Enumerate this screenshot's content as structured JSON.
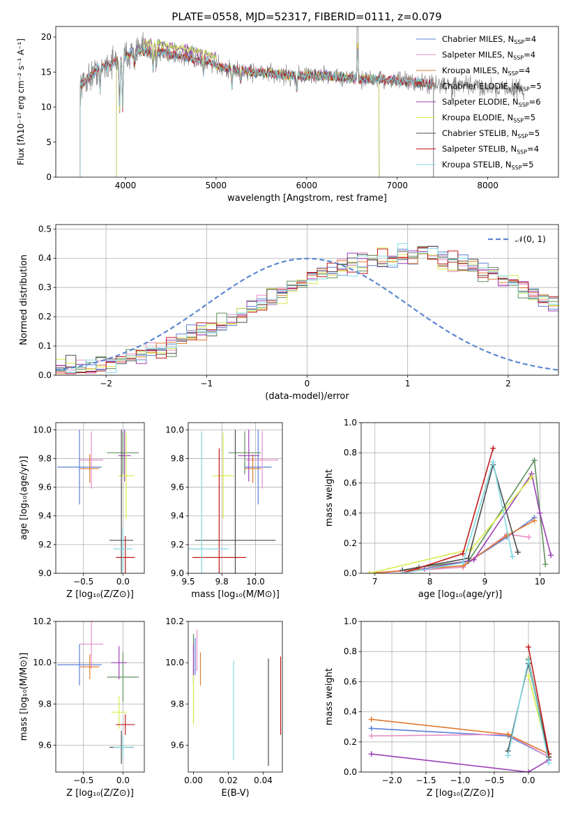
{
  "title": "PLATE=0558, MJD=52317, FIBERID=0111, z=0.079",
  "colors": {
    "Chabrier MILES": "#5b7fd6",
    "Salpeter MILES": "#e88fc7",
    "Kroupa MILES": "#e07a2f",
    "Chabrier ELODIE": "#5e8f5a",
    "Salpeter ELODIE": "#9b3fb5",
    "Kroupa ELODIE": "#d8ec4a",
    "Chabrier STELIB": "#4d4d4d",
    "Salpeter STELIB": "#c2181b",
    "Kroupa STELIB": "#80d8e0",
    "data": "#808080",
    "normal": "#5b87d0"
  },
  "chart_data": [
    {
      "id": "spectrum",
      "type": "line",
      "xlabel": "wavelength [Angstrom, rest frame]",
      "ylabel": "Flux [fλ10⁻¹⁷ erg cm⁻² s⁻¹ A⁻¹]",
      "xlim": [
        3230,
        8780
      ],
      "ylim": [
        0,
        21.5
      ],
      "xticks": [
        4000,
        5000,
        6000,
        7000,
        8000
      ],
      "yticks": [
        0,
        5,
        10,
        15,
        20
      ],
      "grid": false,
      "legend": "top-right",
      "continuum": {
        "x": [
          3500,
          3700,
          3900,
          4100,
          4300,
          4500,
          4700,
          4900,
          5100,
          5400,
          5800,
          6200,
          6600,
          7000,
          7400,
          7800,
          8200,
          8400
        ],
        "y": [
          13.0,
          15.5,
          16.5,
          18.0,
          18.0,
          17.5,
          17.0,
          16.5,
          15.5,
          15.0,
          14.5,
          14.5,
          14.0,
          13.8,
          13.2,
          13.0,
          12.7,
          12.5
        ]
      },
      "features": [
        {
          "x": 3720,
          "depth": 3
        },
        {
          "x": 3934,
          "depth": 7
        },
        {
          "x": 3968,
          "depth": 7
        },
        {
          "x": 4101,
          "depth": 2
        },
        {
          "x": 4304,
          "depth": 2.5
        },
        {
          "x": 4340,
          "depth": 2
        },
        {
          "x": 4861,
          "depth": 2
        },
        {
          "x": 5175,
          "depth": 2.5
        },
        {
          "x": 5270,
          "depth": 1.5
        },
        {
          "x": 5890,
          "depth": 2
        },
        {
          "x": 6563,
          "depth": -5
        },
        {
          "x": 7600,
          "depth": 1.5
        }
      ],
      "series": [
        {
          "name": "Chabrier MILES, N_SSP=4",
          "color_key": "Chabrier MILES"
        },
        {
          "name": "Salpeter MILES, N_SSP=4",
          "color_key": "Salpeter MILES"
        },
        {
          "name": "Kroupa MILES, N_SSP=4",
          "color_key": "Kroupa MILES"
        },
        {
          "name": "Chabrier ELODIE, N_SSP=5",
          "color_key": "Chabrier ELODIE"
        },
        {
          "name": "Salpeter ELODIE, N_SSP=6",
          "color_key": "Salpeter ELODIE"
        },
        {
          "name": "Kroupa ELODIE, N_SSP=5",
          "color_key": "Kroupa ELODIE"
        },
        {
          "name": "Chabrier STELIB, N_SSP=5",
          "color_key": "Chabrier STELIB"
        },
        {
          "name": "Salpeter STELIB, N_SSP=4",
          "color_key": "Salpeter STELIB"
        },
        {
          "name": "Kroupa STELIB, N_SSP=5",
          "color_key": "Kroupa STELIB"
        }
      ]
    },
    {
      "id": "residuals",
      "type": "histogram",
      "xlabel": "(data-model)/error",
      "ylabel": "Normed distribution",
      "xlim": [
        -2.5,
        2.5
      ],
      "ylim": [
        0,
        0.515
      ],
      "xticks": [
        -2,
        -1,
        0,
        1,
        2
      ],
      "yticks": [
        0.0,
        0.1,
        0.2,
        0.3,
        0.4,
        0.5
      ],
      "grid": true,
      "legend": "top-right",
      "normal_label": "𝒩(0, 1)",
      "bin_width": 0.1,
      "bin_start": -2.5,
      "profile": [
        0.02,
        0.025,
        0.03,
        0.035,
        0.04,
        0.045,
        0.05,
        0.06,
        0.07,
        0.08,
        0.09,
        0.1,
        0.12,
        0.13,
        0.15,
        0.16,
        0.17,
        0.19,
        0.21,
        0.23,
        0.24,
        0.26,
        0.28,
        0.3,
        0.32,
        0.34,
        0.35,
        0.36,
        0.37,
        0.38,
        0.39,
        0.4,
        0.4,
        0.4,
        0.41,
        0.41,
        0.42,
        0.41,
        0.4,
        0.39,
        0.38,
        0.37,
        0.36,
        0.35,
        0.33,
        0.32,
        0.3,
        0.28,
        0.26,
        0.24,
        0.22,
        0.2,
        0.19,
        0.17,
        0.15,
        0.14,
        0.12,
        0.11,
        0.1,
        0.09,
        0.08,
        0.07,
        0.06,
        0.05,
        0.05,
        0.04,
        0.035,
        0.03,
        0.025,
        0.02
      ],
      "series": [
        "Chabrier MILES",
        "Salpeter MILES",
        "Kroupa MILES",
        "Chabrier ELODIE",
        "Salpeter ELODIE",
        "Kroupa ELODIE",
        "Chabrier STELIB",
        "Salpeter STELIB",
        "Kroupa STELIB"
      ]
    },
    {
      "id": "age_vs_Z",
      "type": "scatter",
      "xlabel": "Z [log₁₀(Z/Z⊙)]",
      "ylabel": "age  [log₁₀(age/yr)]",
      "xlim": [
        -0.85,
        0.27
      ],
      "ylim": [
        9.0,
        10.05
      ],
      "xticks": [
        -0.5,
        0.0
      ],
      "yticks": [
        9.0,
        9.2,
        9.4,
        9.6,
        9.8,
        10.0
      ],
      "grid": true,
      "points": [
        {
          "k": "Chabrier MILES",
          "x": -0.55,
          "y": 9.74,
          "xerr": 0.28,
          "yerr": 0.26
        },
        {
          "k": "Salpeter MILES",
          "x": -0.4,
          "y": 9.79,
          "xerr": 0.15,
          "yerr": 0.2
        },
        {
          "k": "Kroupa MILES",
          "x": -0.42,
          "y": 9.73,
          "xerr": 0.12,
          "yerr": 0.1
        },
        {
          "k": "Chabrier ELODIE",
          "x": 0.0,
          "y": 9.84,
          "xerr": 0.2,
          "yerr": 0.15
        },
        {
          "k": "Salpeter ELODIE",
          "x": 0.02,
          "y": 9.82,
          "xerr": 0.08,
          "yerr": 0.18
        },
        {
          "k": "Kroupa ELODIE",
          "x": 0.04,
          "y": 9.68,
          "xerr": 0.1,
          "yerr": 0.3
        },
        {
          "k": "Chabrier STELIB",
          "x": -0.02,
          "y": 9.23,
          "xerr": 0.15,
          "yerr": 0.77
        },
        {
          "k": "Salpeter STELIB",
          "x": 0.03,
          "y": 9.11,
          "xerr": 0.12,
          "yerr": 0.15
        },
        {
          "k": "Kroupa STELIB",
          "x": 0.0,
          "y": 9.17,
          "xerr": 0.12,
          "yerr": 0.15
        }
      ]
    },
    {
      "id": "age_vs_mass",
      "type": "scatter",
      "xlabel": "mass [log₁₀(M/M⊙)]",
      "ylabel": "",
      "xlim": [
        9.5,
        10.2
      ],
      "ylim": [
        9.0,
        10.05
      ],
      "xticks": [
        9.5,
        9.75,
        10.0
      ],
      "yticks": [
        9.0,
        9.2,
        9.4,
        9.6,
        9.8,
        10.0
      ],
      "grid": true,
      "points": [
        {
          "k": "Chabrier MILES",
          "x": 10.02,
          "y": 9.74,
          "xerr": 0.1,
          "yerr": 0.26
        },
        {
          "k": "Salpeter MILES",
          "x": 10.05,
          "y": 9.79,
          "xerr": 0.12,
          "yerr": 0.2
        },
        {
          "k": "Kroupa MILES",
          "x": 9.98,
          "y": 9.73,
          "xerr": 0.06,
          "yerr": 0.1
        },
        {
          "k": "Chabrier ELODIE",
          "x": 9.92,
          "y": 9.84,
          "xerr": 0.12,
          "yerr": 0.15
        },
        {
          "k": "Salpeter ELODIE",
          "x": 9.95,
          "y": 9.82,
          "xerr": 0.08,
          "yerr": 0.18
        },
        {
          "k": "Kroupa ELODIE",
          "x": 9.76,
          "y": 9.68,
          "xerr": 0.08,
          "yerr": 0.3
        },
        {
          "k": "Chabrier STELIB",
          "x": 9.85,
          "y": 9.23,
          "xerr": 0.3,
          "yerr": 0.77
        },
        {
          "k": "Salpeter STELIB",
          "x": 9.73,
          "y": 9.11,
          "xerr": 0.2,
          "yerr": 0.76
        },
        {
          "k": "Kroupa STELIB",
          "x": 9.6,
          "y": 9.17,
          "xerr": 0.2,
          "yerr": 0.82
        }
      ]
    },
    {
      "id": "weight_vs_age",
      "type": "line",
      "xlabel": "age  [log₁₀(age/yr)]",
      "ylabel": "mass weight",
      "xlim": [
        6.75,
        10.35
      ],
      "ylim": [
        0,
        1.0
      ],
      "xticks": [
        7,
        8,
        9,
        10
      ],
      "yticks": [
        0.0,
        0.2,
        0.4,
        0.6,
        0.8,
        1.0
      ],
      "grid": true,
      "series": [
        {
          "k": "Chabrier MILES",
          "x": [
            6.9,
            8.6,
            9.4,
            9.9
          ],
          "y": [
            0.0,
            0.05,
            0.24,
            0.37
          ]
        },
        {
          "k": "Salpeter MILES",
          "x": [
            6.9,
            8.6,
            9.4,
            9.8
          ],
          "y": [
            0.0,
            0.04,
            0.26,
            0.24
          ]
        },
        {
          "k": "Kroupa MILES",
          "x": [
            6.9,
            8.6,
            9.4,
            9.9
          ],
          "y": [
            0.0,
            0.05,
            0.25,
            0.35
          ]
        },
        {
          "k": "Chabrier ELODIE",
          "x": [
            7.8,
            8.7,
            9.9,
            10.1
          ],
          "y": [
            0.04,
            0.08,
            0.75,
            0.06
          ]
        },
        {
          "k": "Salpeter ELODIE",
          "x": [
            7.9,
            8.8,
            9.85,
            10.0,
            10.2
          ],
          "y": [
            0.03,
            0.09,
            0.66,
            0.4,
            0.12
          ]
        },
        {
          "k": "Kroupa ELODIE",
          "x": [
            6.9,
            8.75,
            9.85
          ],
          "y": [
            0.0,
            0.16,
            0.64
          ]
        },
        {
          "k": "Chabrier STELIB",
          "x": [
            7.5,
            8.7,
            9.15,
            9.6
          ],
          "y": [
            0.02,
            0.1,
            0.72,
            0.14
          ]
        },
        {
          "k": "Salpeter STELIB",
          "x": [
            7.5,
            8.6,
            9.15
          ],
          "y": [
            0.0,
            0.13,
            0.83
          ]
        },
        {
          "k": "Kroupa STELIB",
          "x": [
            7.5,
            8.6,
            9.15,
            9.5
          ],
          "y": [
            0.0,
            0.07,
            0.74,
            0.11
          ]
        }
      ]
    },
    {
      "id": "mass_vs_Z",
      "type": "scatter",
      "xlabel": "Z [log₁₀(Z/Z⊙)]",
      "ylabel": "mass [log₁₀(M/M⊙)]",
      "xlim": [
        -0.85,
        0.27
      ],
      "ylim": [
        9.47,
        10.2
      ],
      "xticks": [
        -0.5,
        0.0
      ],
      "yticks": [
        9.6,
        9.8,
        10.0,
        10.2
      ],
      "grid": true,
      "points": [
        {
          "k": "Chabrier MILES",
          "x": -0.55,
          "y": 9.99,
          "xerr": 0.28,
          "yerr": 0.1
        },
        {
          "k": "Salpeter MILES",
          "x": -0.4,
          "y": 10.09,
          "xerr": 0.15,
          "yerr": 0.12
        },
        {
          "k": "Kroupa MILES",
          "x": -0.42,
          "y": 9.98,
          "xerr": 0.12,
          "yerr": 0.06
        },
        {
          "k": "Chabrier ELODIE",
          "x": 0.0,
          "y": 9.93,
          "xerr": 0.2,
          "yerr": 0.12
        },
        {
          "k": "Salpeter ELODIE",
          "x": -0.05,
          "y": 10.0,
          "xerr": 0.1,
          "yerr": 0.08
        },
        {
          "k": "Kroupa ELODIE",
          "x": -0.05,
          "y": 9.76,
          "xerr": 0.1,
          "yerr": 0.08
        },
        {
          "k": "Chabrier STELIB",
          "x": -0.02,
          "y": 9.59,
          "xerr": 0.15,
          "yerr": 0.08
        },
        {
          "k": "Salpeter STELIB",
          "x": 0.03,
          "y": 9.7,
          "xerr": 0.12,
          "yerr": 0.05
        },
        {
          "k": "Kroupa STELIB",
          "x": 0.0,
          "y": 9.59,
          "xerr": 0.12,
          "yerr": 0.05
        }
      ]
    },
    {
      "id": "mass_vs_ebv",
      "type": "scatter",
      "xlabel": "E(B-V)",
      "ylabel": "",
      "xlim": [
        -0.003,
        0.051
      ],
      "ylim": [
        9.47,
        10.2
      ],
      "xticks": [
        0.0,
        0.02,
        0.04
      ],
      "yticks": [
        9.6,
        9.8,
        10.0,
        10.2
      ],
      "grid": false,
      "points": [
        {
          "k": "Chabrier MILES",
          "x": 0.001,
          "y": 10.03,
          "yerr": 0.09
        },
        {
          "k": "Salpeter MILES",
          "x": 0.002,
          "y": 10.06,
          "yerr": 0.1
        },
        {
          "k": "Kroupa MILES",
          "x": 0.004,
          "y": 9.97,
          "yerr": 0.08
        },
        {
          "k": "Chabrier ELODIE",
          "x": 0.0,
          "y": 10.02,
          "yerr": 0.12
        },
        {
          "k": "Salpeter ELODIE",
          "x": 0.0,
          "y": 10.01,
          "yerr": 0.08
        },
        {
          "k": "Kroupa ELODIE",
          "x": 0.0,
          "y": 9.82,
          "yerr": 0.12
        },
        {
          "k": "Chabrier STELIB",
          "x": 0.043,
          "y": 9.76,
          "yerr": 0.26
        },
        {
          "k": "Salpeter STELIB",
          "x": 0.05,
          "y": 9.84,
          "yerr": 0.19
        },
        {
          "k": "Kroupa STELIB",
          "x": 0.023,
          "y": 9.77,
          "yerr": 0.24
        }
      ]
    },
    {
      "id": "weight_vs_Z",
      "type": "line",
      "xlabel": "Z [log₁₀(Z/Z⊙)]",
      "ylabel": "mass weight",
      "xlim": [
        -2.45,
        0.45
      ],
      "ylim": [
        0,
        1.0
      ],
      "xticks": [
        -2.0,
        -1.5,
        -1.0,
        -0.5,
        0.0
      ],
      "yticks": [
        0.0,
        0.2,
        0.4,
        0.6,
        0.8,
        1.0
      ],
      "grid": true,
      "series": [
        {
          "k": "Chabrier MILES",
          "x": [
            -2.3,
            -0.3,
            0.3
          ],
          "y": [
            0.29,
            0.24,
            0.1
          ]
        },
        {
          "k": "Salpeter MILES",
          "x": [
            -2.3,
            -0.3,
            0.3
          ],
          "y": [
            0.24,
            0.25,
            0.1
          ]
        },
        {
          "k": "Kroupa MILES",
          "x": [
            -2.3,
            -0.3,
            0.3
          ],
          "y": [
            0.35,
            0.25,
            0.12
          ]
        },
        {
          "k": "Chabrier ELODIE",
          "x": [
            0.0,
            0.3
          ],
          "y": [
            0.75,
            0.1
          ]
        },
        {
          "k": "Salpeter ELODIE",
          "x": [
            -2.3,
            0.0,
            0.3
          ],
          "y": [
            0.12,
            0.0,
            0.08
          ]
        },
        {
          "k": "Kroupa ELODIE",
          "x": [
            0.0,
            0.3
          ],
          "y": [
            0.64,
            0.1
          ]
        },
        {
          "k": "Chabrier STELIB",
          "x": [
            -0.3,
            0.0,
            0.3
          ],
          "y": [
            0.14,
            0.72,
            0.1
          ]
        },
        {
          "k": "Salpeter STELIB",
          "x": [
            0.0,
            0.3
          ],
          "y": [
            0.83,
            0.12
          ]
        },
        {
          "k": "Kroupa STELIB",
          "x": [
            -0.3,
            0.0,
            0.3
          ],
          "y": [
            0.11,
            0.74,
            0.06
          ]
        }
      ]
    }
  ]
}
